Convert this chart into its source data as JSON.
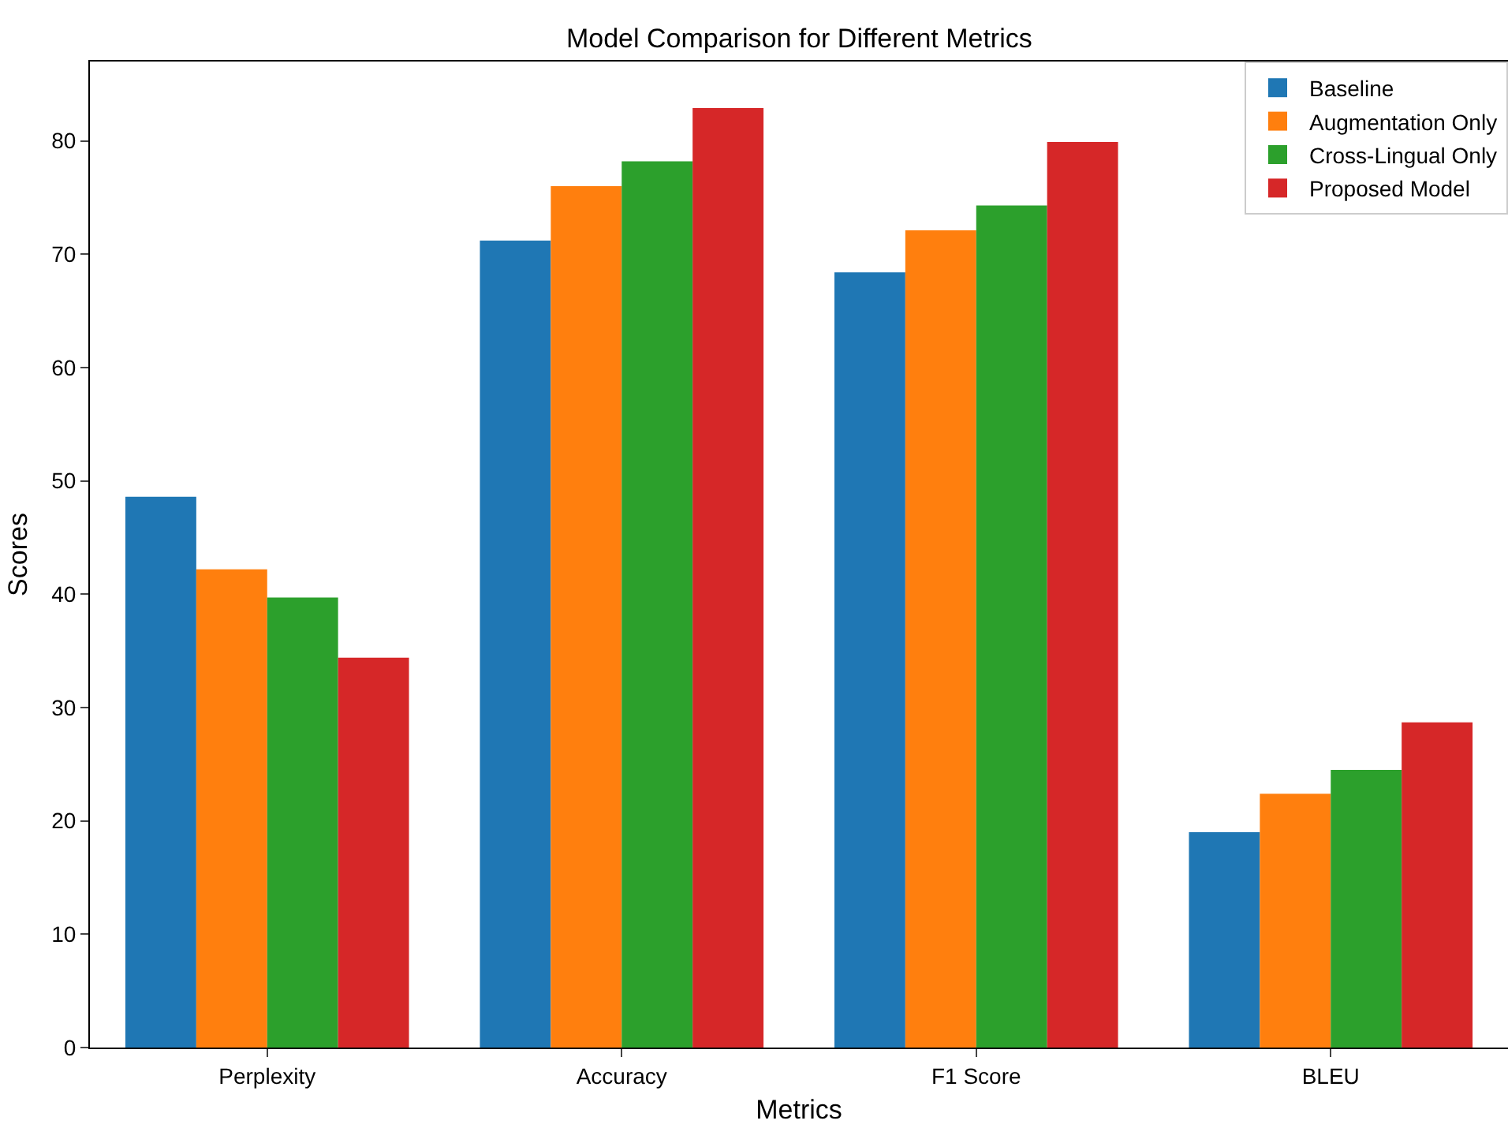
{
  "chart_data": {
    "type": "bar",
    "title": "Model Comparison for Different Metrics",
    "xlabel": "Metrics",
    "ylabel": "Scores",
    "categories": [
      "Perplexity",
      "Accuracy",
      "F1 Score",
      "BLEU"
    ],
    "series": [
      {
        "name": "Baseline",
        "color": "#1f77b4",
        "values": [
          48.6,
          71.2,
          68.4,
          19.0
        ]
      },
      {
        "name": "Augmentation Only",
        "color": "#ff7f0e",
        "values": [
          42.2,
          76.0,
          72.1,
          22.4
        ]
      },
      {
        "name": "Cross-Lingual Only",
        "color": "#2ca02c",
        "values": [
          39.7,
          78.2,
          74.3,
          24.5
        ]
      },
      {
        "name": "Proposed Model",
        "color": "#d62728",
        "values": [
          34.4,
          82.9,
          79.9,
          28.7
        ]
      }
    ],
    "ylim": [
      0,
      87
    ],
    "yticks": [
      0,
      10,
      20,
      30,
      40,
      50,
      60,
      70,
      80
    ],
    "grid": false,
    "legend": "top right"
  }
}
